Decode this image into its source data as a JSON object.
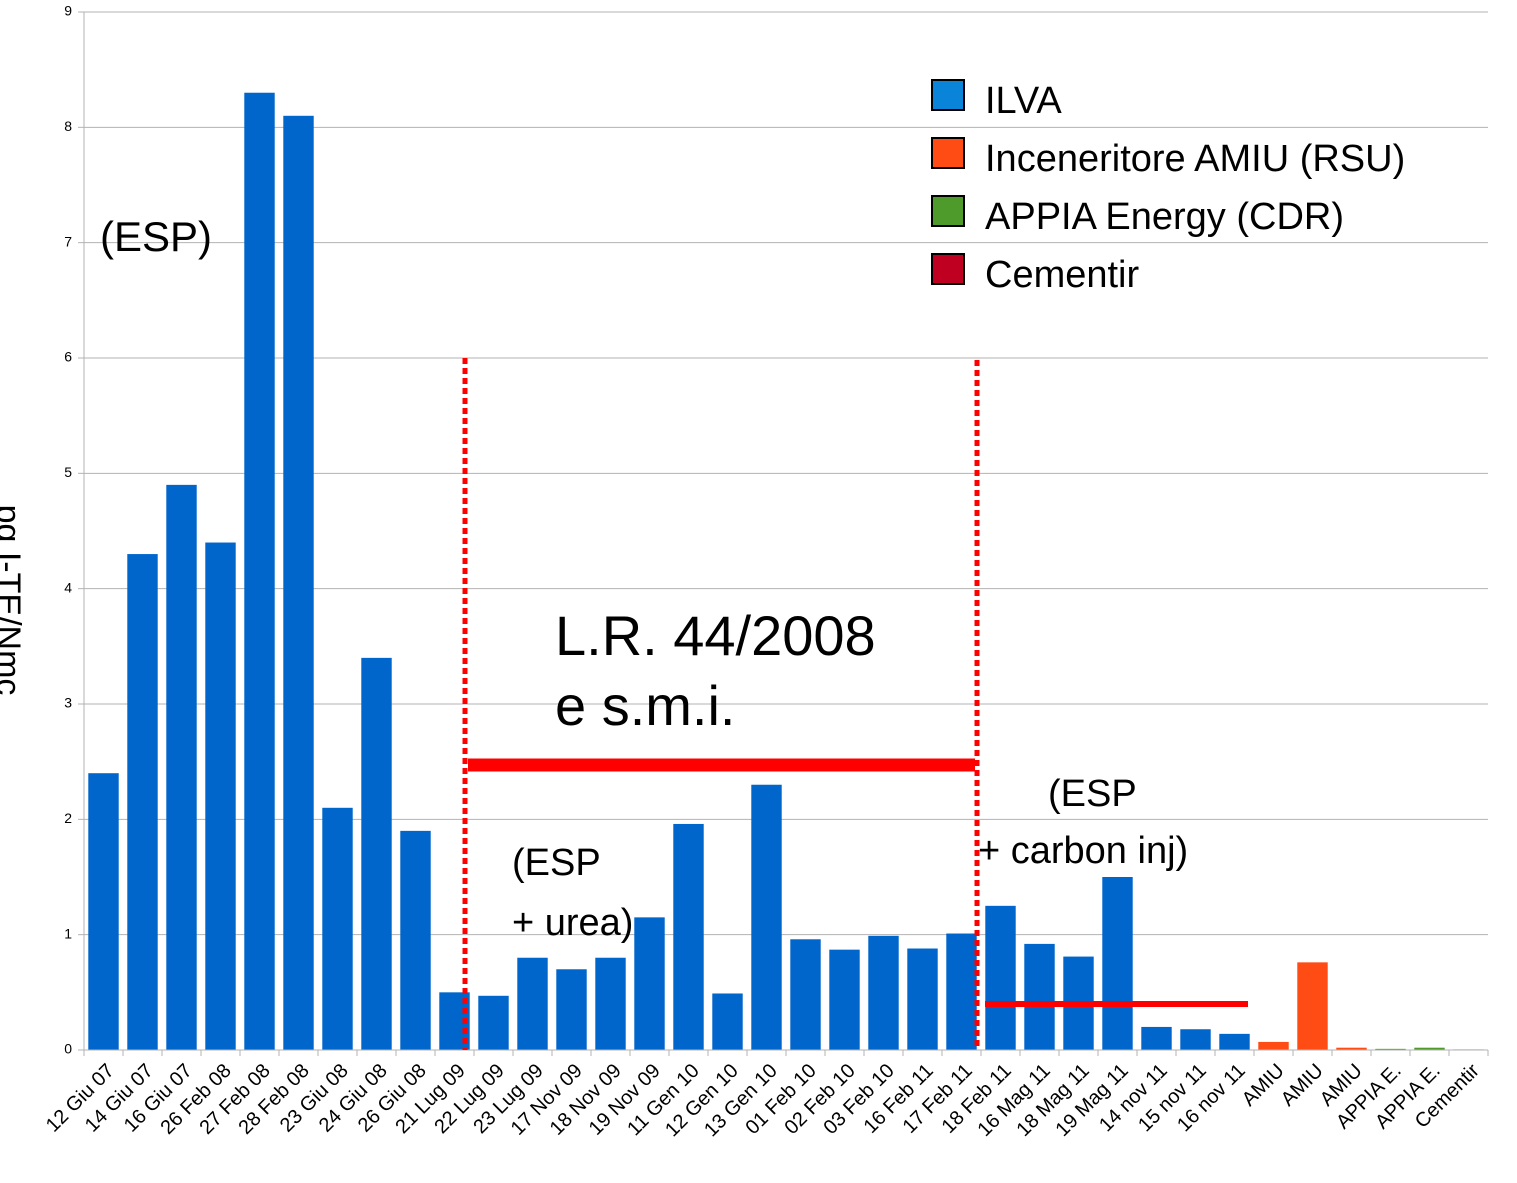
{
  "chart_data": {
    "type": "bar",
    "y_label": "pg I-TE/Nmc",
    "categories": [
      "12 Giu 07",
      "14 Giu 07",
      "16 Giu 07",
      "26 Feb 08",
      "27 Feb 08",
      "28 Feb 08",
      "23 Giu 08",
      "24 Giu 08",
      "26 Giu 08",
      "21 Lug 09",
      "22 Lug 09",
      "23 Lug 09",
      "17 Nov 09",
      "18 Nov 09",
      "19 Nov 09",
      "11 Gen 10",
      "12 Gen 10",
      "13 Gen 10",
      "01 Feb 10",
      "02 Feb 10",
      "03 Feb 10",
      "16 Feb 11",
      "17 Feb 11",
      "18 Feb 11",
      "16 Mag 11",
      "18 Mag 11",
      "19 Mag 11",
      "14 nov 11",
      "15 nov 11",
      "16 nov 11",
      "AMIU",
      "AMIU",
      "AMIU",
      "APPIA E.",
      "APPIA E.",
      "Cementir"
    ],
    "series": [
      {
        "name": "ILVA",
        "color": "#0066cc",
        "legend_color": "#0a84d8",
        "values": [
          2.4,
          4.3,
          4.9,
          4.4,
          8.3,
          8.1,
          2.1,
          3.4,
          1.9,
          0.5,
          0.47,
          0.8,
          0.7,
          0.8,
          1.15,
          1.96,
          0.49,
          2.3,
          0.96,
          0.87,
          0.99,
          0.88,
          1.01,
          1.25,
          0.92,
          0.81,
          1.5,
          0.2,
          0.18,
          0.14,
          null,
          null,
          null,
          null,
          null,
          null
        ]
      },
      {
        "name": "Inceneritore AMIU (RSU)",
        "color": "#ff4c14",
        "values": [
          null,
          null,
          null,
          null,
          null,
          null,
          null,
          null,
          null,
          null,
          null,
          null,
          null,
          null,
          null,
          null,
          null,
          null,
          null,
          null,
          null,
          null,
          null,
          null,
          null,
          null,
          null,
          null,
          null,
          null,
          0.07,
          0.76,
          0.02,
          null,
          null,
          null
        ]
      },
      {
        "name": "APPIA Energy (CDR)",
        "color": "#4e9a2a",
        "values": [
          null,
          null,
          null,
          null,
          null,
          null,
          null,
          null,
          null,
          null,
          null,
          null,
          null,
          null,
          null,
          null,
          null,
          null,
          null,
          null,
          null,
          null,
          null,
          null,
          null,
          null,
          null,
          null,
          null,
          null,
          null,
          null,
          null,
          0.01,
          0.02,
          null
        ]
      },
      {
        "name": "Cementir",
        "color": "#c00020",
        "values": [
          null,
          null,
          null,
          null,
          null,
          null,
          null,
          null,
          null,
          null,
          null,
          null,
          null,
          null,
          null,
          null,
          null,
          null,
          null,
          null,
          null,
          null,
          null,
          null,
          null,
          null,
          null,
          null,
          null,
          null,
          null,
          null,
          null,
          null,
          null,
          0.005
        ]
      }
    ],
    "ylim": [
      0,
      9
    ],
    "yticks": [
      0,
      1,
      2,
      3,
      4,
      5,
      6,
      7,
      8,
      9
    ],
    "grid": true,
    "annotations": [
      "(ESP)",
      "L.R. 44/2008",
      "e s.m.i.",
      "(ESP",
      "+ urea)",
      "(ESP",
      "+ carbon inj)"
    ]
  }
}
